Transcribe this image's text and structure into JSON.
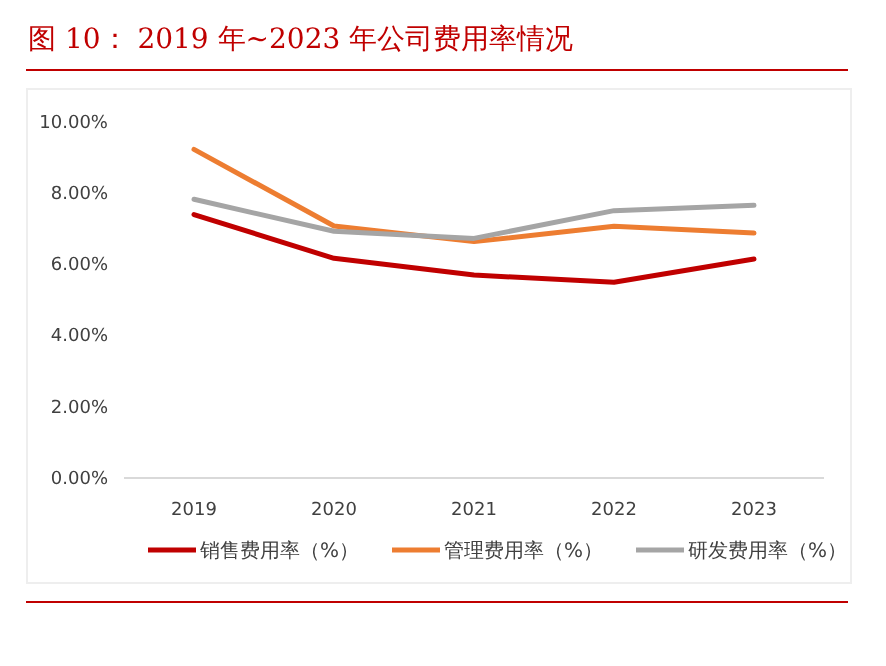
{
  "chart_data": {
    "type": "line",
    "title": "图 10： 2019 年~2023 年公司费用率情况",
    "categories": [
      "2019",
      "2020",
      "2021",
      "2022",
      "2023"
    ],
    "series": [
      {
        "name": "销售费用率（%）",
        "color": "#c00000",
        "values": [
          7.4,
          6.17,
          5.7,
          5.5,
          6.15
        ]
      },
      {
        "name": "管理费用率（%）",
        "color": "#ed7d31",
        "values": [
          9.23,
          7.08,
          6.64,
          7.07,
          6.88
        ]
      },
      {
        "name": "研发费用率（%）",
        "color": "#a5a5a5",
        "values": [
          7.83,
          6.93,
          6.73,
          7.51,
          7.66
        ]
      }
    ],
    "ylim": [
      0,
      10
    ],
    "yticks": [
      {
        "value": 0,
        "label": "0.00%"
      },
      {
        "value": 2,
        "label": "2.00%"
      },
      {
        "value": 4,
        "label": "4.00%"
      },
      {
        "value": 6,
        "label": "6.00%"
      },
      {
        "value": 8,
        "label": "8.00%"
      },
      {
        "value": 10,
        "label": "10.00%"
      }
    ],
    "grid": false,
    "legend": "bottom",
    "marker": "none",
    "line_style": "solid"
  }
}
